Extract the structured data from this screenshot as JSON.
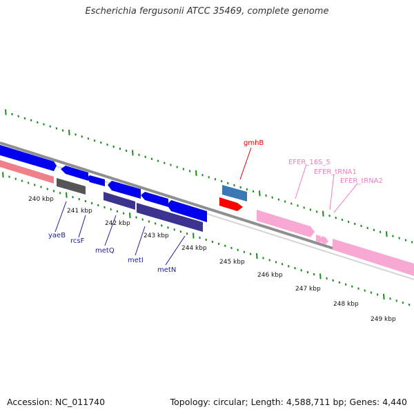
{
  "title": "Escherichia fergusonii ATCC 35469, complete genome",
  "footer": {
    "accession": "Accession: NC_011740",
    "summary": "Topology: circular; Length: 4,588,711 bp; Genes: 4,440"
  },
  "colors": {
    "backbone": "#8f8f8f",
    "gc_ticks": "#1a8a1a",
    "cds_forward": "#0000ee",
    "cds_operon": "#3b3390",
    "rrna_label": "#e87fbf",
    "rna_feature": "#f7a8d3",
    "gmhB_label": "#e00000",
    "gmhB_feature": "#ff0000",
    "blue_label": "#1c1c9a"
  },
  "scale": {
    "unit": "kbp",
    "ticks": [
      "240 kbp",
      "241 kbp",
      "242 kbp",
      "243 kbp",
      "244 kbp",
      "245 kbp",
      "246 kbp",
      "247 kbp",
      "248 kbp",
      "249 kbp"
    ]
  },
  "genes": [
    {
      "name": "yaeB",
      "color": "#1c1c9a"
    },
    {
      "name": "rcsF",
      "color": "#1c1c9a"
    },
    {
      "name": "metQ",
      "color": "#1c1c9a"
    },
    {
      "name": "metI",
      "color": "#1c1c9a"
    },
    {
      "name": "metN",
      "color": "#1c1c9a"
    },
    {
      "name": "gmhB",
      "color": "#e00000"
    },
    {
      "name": "EFER_16S_5",
      "color": "#e87fbf"
    },
    {
      "name": "EFER_tRNA1",
      "color": "#e87fbf"
    },
    {
      "name": "EFER_tRNA2",
      "color": "#e87fbf"
    }
  ]
}
